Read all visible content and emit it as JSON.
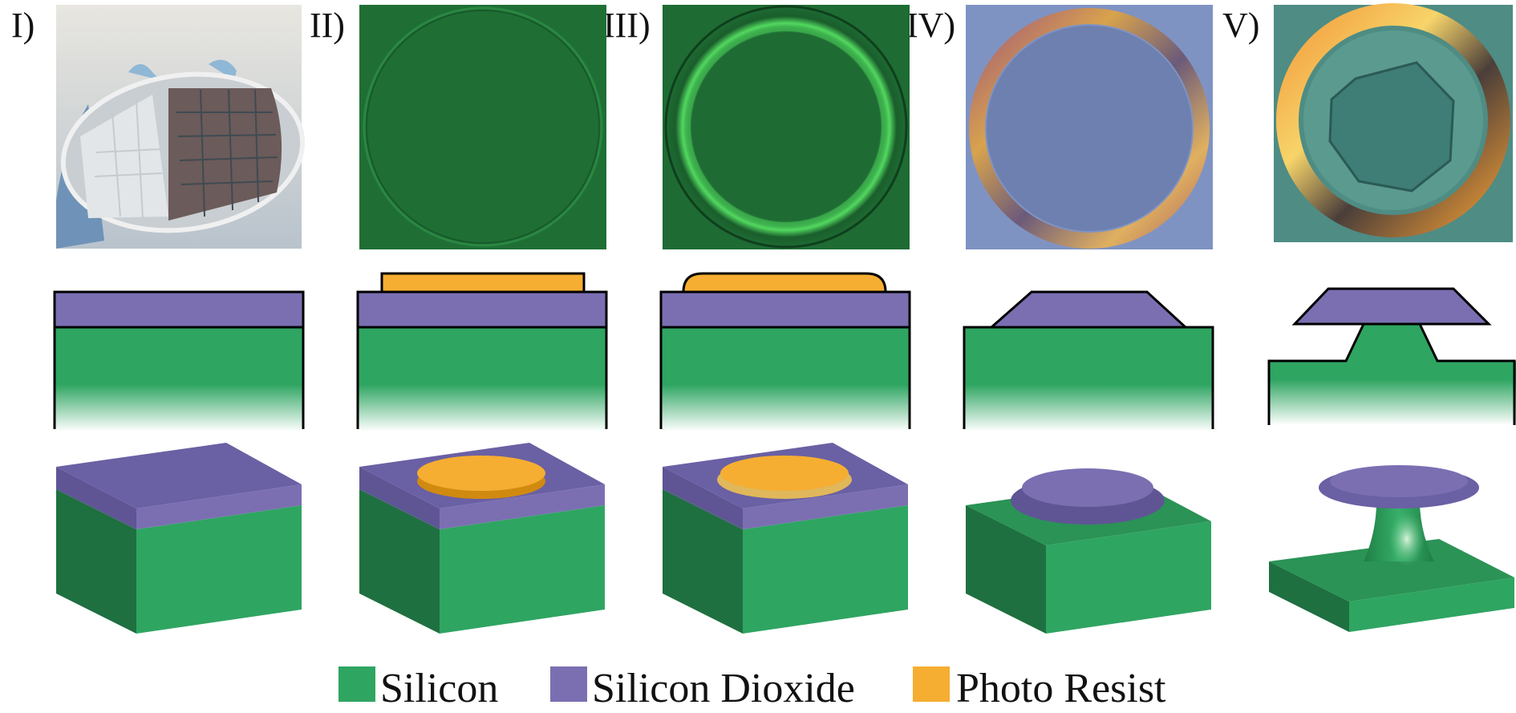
{
  "steps": [
    {
      "label": "I)"
    },
    {
      "label": "II)"
    },
    {
      "label": "III)"
    },
    {
      "label": "IV)"
    },
    {
      "label": "V)"
    }
  ],
  "legend": [
    {
      "name": "Silicon",
      "color": "#2fa562"
    },
    {
      "name": "Silicon Dioxide",
      "color": "#7b6fb2"
    },
    {
      "name": "Photo Resist",
      "color": "#f5ae31"
    }
  ],
  "colors": {
    "silicon": "#2fa562",
    "silicon_dark": "#1f7040",
    "silicon_oxide": "#7b6fb2",
    "silicon_oxide_dark": "#5f5595",
    "photo_resist": "#f5ae31",
    "photo_resist_dark": "#d18a10",
    "micrograph_green": "#1f6f35",
    "micrograph_blue": "#7f93c3",
    "micrograph_teal": "#4e8c84"
  }
}
